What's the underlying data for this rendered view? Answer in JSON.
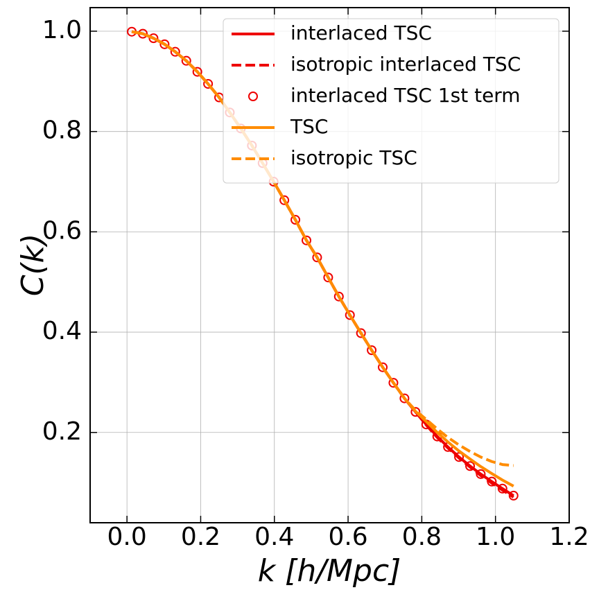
{
  "chart_data": {
    "type": "line",
    "xlabel": "k [h/Mpc]",
    "ylabel": "C(k)",
    "x": [
      0.013,
      0.043,
      0.072,
      0.102,
      0.131,
      0.161,
      0.191,
      0.22,
      0.25,
      0.279,
      0.309,
      0.339,
      0.368,
      0.398,
      0.427,
      0.457,
      0.487,
      0.516,
      0.546,
      0.575,
      0.605,
      0.635,
      0.664,
      0.694,
      0.723,
      0.753,
      0.783,
      0.812,
      0.842,
      0.871,
      0.901,
      0.931,
      0.96,
      0.99,
      1.019,
      1.049
    ],
    "series": [
      {
        "name": "interlaced TSC",
        "color": "#ee0000",
        "style": "solid",
        "values": [
          0.999,
          0.995,
          0.986,
          0.974,
          0.959,
          0.941,
          0.919,
          0.895,
          0.868,
          0.838,
          0.806,
          0.772,
          0.737,
          0.7,
          0.663,
          0.624,
          0.583,
          0.549,
          0.509,
          0.471,
          0.434,
          0.398,
          0.364,
          0.33,
          0.299,
          0.268,
          0.241,
          0.216,
          0.192,
          0.171,
          0.151,
          0.133,
          0.117,
          0.102,
          0.088,
          0.074
        ]
      },
      {
        "name": "isotropic interlaced TSC",
        "color": "#ee0000",
        "style": "dashed",
        "values": [
          0.999,
          0.995,
          0.986,
          0.974,
          0.959,
          0.941,
          0.919,
          0.895,
          0.868,
          0.838,
          0.806,
          0.772,
          0.737,
          0.7,
          0.663,
          0.624,
          0.583,
          0.549,
          0.509,
          0.471,
          0.434,
          0.398,
          0.364,
          0.33,
          0.299,
          0.268,
          0.241,
          0.215,
          0.19,
          0.169,
          0.149,
          0.131,
          0.114,
          0.099,
          0.085,
          0.071
        ]
      },
      {
        "name": "interlaced TSC 1st term",
        "color": "#ee0000",
        "style": "markers",
        "values": [
          0.999,
          0.995,
          0.986,
          0.974,
          0.959,
          0.941,
          0.919,
          0.895,
          0.868,
          0.838,
          0.806,
          0.772,
          0.737,
          0.7,
          0.663,
          0.624,
          0.583,
          0.549,
          0.509,
          0.471,
          0.434,
          0.398,
          0.364,
          0.33,
          0.299,
          0.268,
          0.241,
          0.216,
          0.192,
          0.171,
          0.151,
          0.133,
          0.117,
          0.102,
          0.088,
          0.074
        ]
      },
      {
        "name": "TSC",
        "color": "#ff8c00",
        "style": "solid",
        "values": [
          0.999,
          0.995,
          0.986,
          0.974,
          0.959,
          0.941,
          0.919,
          0.895,
          0.868,
          0.838,
          0.806,
          0.772,
          0.737,
          0.7,
          0.663,
          0.624,
          0.583,
          0.549,
          0.509,
          0.471,
          0.434,
          0.398,
          0.364,
          0.33,
          0.299,
          0.268,
          0.242,
          0.222,
          0.2,
          0.181,
          0.163,
          0.147,
          0.132,
          0.118,
          0.105,
          0.093
        ]
      },
      {
        "name": "isotropic TSC",
        "color": "#ff8c00",
        "style": "dashed",
        "values": [
          0.999,
          0.995,
          0.986,
          0.974,
          0.959,
          0.941,
          0.919,
          0.895,
          0.868,
          0.838,
          0.806,
          0.772,
          0.737,
          0.7,
          0.663,
          0.624,
          0.583,
          0.549,
          0.509,
          0.471,
          0.434,
          0.398,
          0.364,
          0.33,
          0.299,
          0.268,
          0.244,
          0.226,
          0.207,
          0.19,
          0.175,
          0.162,
          0.151,
          0.142,
          0.136,
          0.134
        ]
      }
    ],
    "xlim": [
      -0.1,
      1.2
    ],
    "ylim": [
      0.02,
      1.047
    ],
    "xticks": [
      {
        "value": 0,
        "label": "0.0"
      },
      0.2,
      0.4,
      0.6,
      0.8,
      {
        "value": 1,
        "label": "1.0"
      },
      1.2
    ],
    "yticks": [
      0.2,
      0.4,
      0.6,
      0.8,
      {
        "value": 1,
        "label": "1.0"
      }
    ],
    "grid": true,
    "legend": "upper right"
  }
}
